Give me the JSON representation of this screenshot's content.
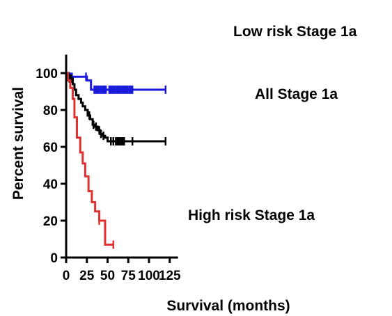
{
  "chart_data": {
    "type": "line",
    "title": "",
    "xlabel": "Survival (months)",
    "ylabel": "Percent survival",
    "xlim": [
      0,
      135
    ],
    "ylim": [
      0,
      110
    ],
    "xticks": [
      0,
      25,
      50,
      75,
      100,
      125
    ],
    "yticks": [
      0,
      20,
      40,
      60,
      80,
      100
    ],
    "grid": false,
    "step": true,
    "series": [
      {
        "name": "Low risk Stage 1a",
        "color": "#1a1adc",
        "x": [
          0,
          2,
          25,
          30,
          120
        ],
        "y": [
          100,
          98,
          96,
          91,
          91
        ],
        "censored_x": [
          3,
          5,
          7,
          24,
          34,
          36,
          38,
          40,
          42,
          44,
          46,
          48,
          52,
          54,
          56,
          58,
          60,
          62,
          64,
          66,
          68,
          70,
          72,
          74,
          76,
          78,
          80,
          120
        ]
      },
      {
        "name": "All Stage 1a",
        "color": "#000000",
        "x": [
          0,
          3,
          8,
          10,
          12,
          15,
          18,
          20,
          23,
          26,
          29,
          32,
          35,
          38,
          41,
          44,
          47,
          50,
          120
        ],
        "y": [
          100,
          97,
          94,
          91,
          88,
          86,
          84,
          82,
          80,
          77,
          75,
          72,
          71,
          69,
          67,
          66,
          65,
          63,
          63
        ],
        "censored_x": [
          4,
          6,
          28,
          33,
          36,
          40,
          42,
          45,
          54,
          57,
          60,
          62,
          64,
          66,
          68,
          70,
          80,
          120
        ]
      },
      {
        "name": "High risk Stage 1a",
        "color": "#e03030",
        "x": [
          0,
          2,
          5,
          8,
          10,
          13,
          17,
          20,
          23,
          27,
          31,
          35,
          40,
          47,
          57
        ],
        "y": [
          100,
          96,
          92,
          86,
          76,
          65,
          57,
          51,
          44,
          36,
          30,
          25,
          20,
          7,
          7
        ],
        "censored_x": [
          40,
          57
        ]
      }
    ],
    "annotations": [
      {
        "text": "Low risk Stage 1a",
        "series": "Low risk Stage 1a"
      },
      {
        "text": "All Stage 1a",
        "series": "All Stage 1a"
      },
      {
        "text": "High risk Stage 1a",
        "series": "High risk Stage 1a"
      }
    ]
  }
}
